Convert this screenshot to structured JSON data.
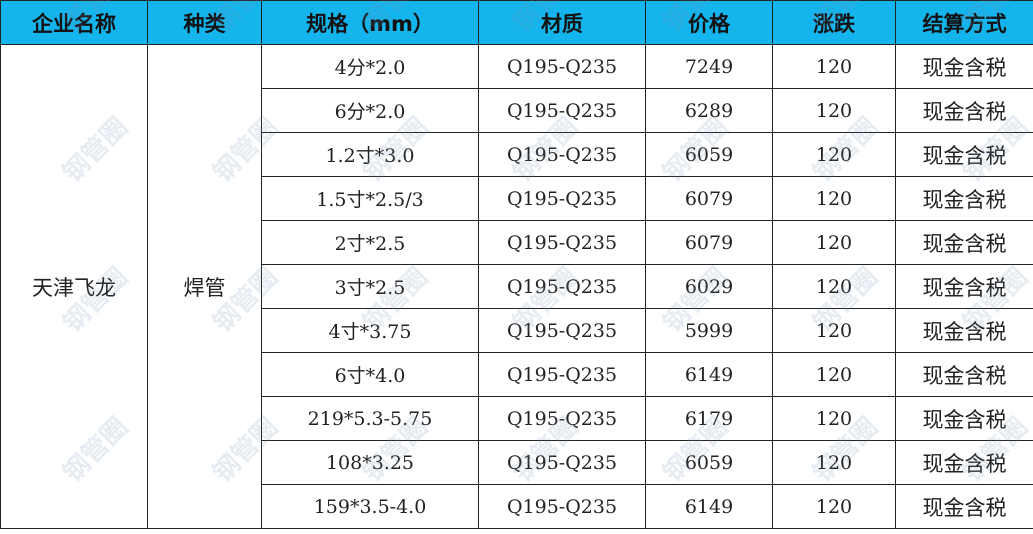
{
  "headers": [
    "企业名称",
    "种类",
    "规格（mm）",
    "材质",
    "价格",
    "涨跌",
    "结算方式"
  ],
  "company": "天津飞龙",
  "category": "焊管",
  "rows": [
    {
      "spec": "4分*2.0",
      "material": "Q195-Q235",
      "price": "7249",
      "change": "120",
      "settlement": "现金含税"
    },
    {
      "spec": "6分*2.0",
      "material": "Q195-Q235",
      "price": "6289",
      "change": "120",
      "settlement": "现金含税"
    },
    {
      "spec": "1.2寸*3.0",
      "material": "Q195-Q235",
      "price": "6059",
      "change": "120",
      "settlement": "现金含税"
    },
    {
      "spec": "1.5寸*2.5/3",
      "material": "Q195-Q235",
      "price": "6079",
      "change": "120",
      "settlement": "现金含税"
    },
    {
      "spec": "2寸*2.5",
      "material": "Q195-Q235",
      "price": "6079",
      "change": "120",
      "settlement": "现金含税"
    },
    {
      "spec": "3寸*2.5",
      "material": "Q195-Q235",
      "price": "6029",
      "change": "120",
      "settlement": "现金含税"
    },
    {
      "spec": "4寸*3.75",
      "material": "Q195-Q235",
      "price": "5999",
      "change": "120",
      "settlement": "现金含税"
    },
    {
      "spec": "6寸*4.0",
      "material": "Q195-Q235",
      "price": "6149",
      "change": "120",
      "settlement": "现金含税"
    },
    {
      "spec": "219*5.3-5.75",
      "material": "Q195-Q235",
      "price": "6179",
      "change": "120",
      "settlement": "现金含税"
    },
    {
      "spec": "108*3.25",
      "material": "Q195-Q235",
      "price": "6059",
      "change": "120",
      "settlement": "现金含税"
    },
    {
      "spec": "159*3.5-4.0",
      "material": "Q195-Q235",
      "price": "6149",
      "change": "120",
      "settlement": "现金含税"
    }
  ],
  "watermark": "钢管圈",
  "colors": {
    "header_bg": "#14b4ec"
  }
}
